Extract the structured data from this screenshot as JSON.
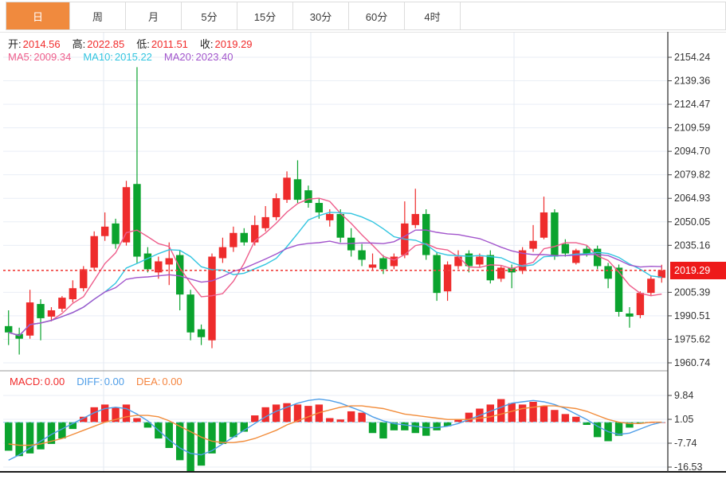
{
  "tabs": [
    {
      "key": "day",
      "label": "日",
      "active": true
    },
    {
      "key": "week",
      "label": "周",
      "active": false
    },
    {
      "key": "month",
      "label": "月",
      "active": false
    },
    {
      "key": "5min",
      "label": "5分",
      "active": false
    },
    {
      "key": "15min",
      "label": "15分",
      "active": false
    },
    {
      "key": "30min",
      "label": "30分",
      "active": false
    },
    {
      "key": "60min",
      "label": "60分",
      "active": false
    },
    {
      "key": "4hour",
      "label": "4时",
      "active": false
    }
  ],
  "ohlc": {
    "open_label": "开:",
    "open": "2014.56",
    "high_label": "高:",
    "high": "2022.85",
    "low_label": "低:",
    "low": "2011.51",
    "close_label": "收:",
    "close": "2019.29"
  },
  "ma": {
    "ma5_label": "MA5:",
    "ma5": "2009.34",
    "ma10_label": "MA10:",
    "ma10": "2015.22",
    "ma20_label": "MA20:",
    "ma20": "2023.40"
  },
  "macd_readout": {
    "macd_label": "MACD:",
    "macd": "0.00",
    "diff_label": "DIFF:",
    "diff": "0.00",
    "dea_label": "DEA:",
    "dea": "0.00"
  },
  "price_axis": {
    "current": "2019.29"
  },
  "colors": {
    "tab_active_bg": "#f08a3e",
    "up": "#ee2c2c",
    "down": "#0ba32e",
    "ma5": "#ee5d8b",
    "ma10": "#32c5e0",
    "ma20": "#a255cc",
    "diff": "#4f9ee8",
    "dea": "#f28c3a",
    "badge": "#ee1a1a",
    "price_line": "#f0403c",
    "grid": "#e9eef6",
    "vgrid": "#e3e9f1",
    "axis_line": "#444444",
    "axis_text": "#333333",
    "zero_dash": "#a5d5ee",
    "separator": "#999999",
    "bottom_line": "#1a1a1a"
  },
  "chart_data": {
    "type": "candlestick+macd",
    "price_panel": {
      "yticks": [
        2154.24,
        2139.36,
        2124.47,
        2109.59,
        2094.7,
        2079.82,
        2064.93,
        2050.05,
        2035.16,
        2005.39,
        1990.51,
        1975.62,
        1960.74
      ],
      "ylim": [
        1957.7,
        2170.4
      ],
      "current_price": 2019.29,
      "ma_windows": [
        5,
        10,
        20
      ],
      "candles": [
        [
          1984,
          1994,
          1972,
          1980
        ],
        [
          1979,
          1983,
          1966,
          1976
        ],
        [
          1978,
          2007,
          1976,
          1999
        ],
        [
          1998,
          2001,
          1975,
          1989
        ],
        [
          1990,
          1996,
          1987,
          1994
        ],
        [
          1995,
          2003,
          1993,
          2002
        ],
        [
          2001,
          2013,
          1999,
          2008
        ],
        [
          2008,
          2022,
          2006,
          2020
        ],
        [
          2021,
          2044,
          2019,
          2041
        ],
        [
          2041,
          2056,
          2038,
          2047
        ],
        [
          2049,
          2052,
          2033,
          2036
        ],
        [
          2037,
          2076,
          2035,
          2072
        ],
        [
          2074,
          2148,
          2024,
          2028
        ],
        [
          2030,
          2034,
          2018,
          2020
        ],
        [
          2018,
          2028,
          2014,
          2025
        ],
        [
          2023,
          2037,
          2010,
          2027
        ],
        [
          2029,
          2032,
          1994,
          2004
        ],
        [
          2004,
          2007,
          1975,
          1980
        ],
        [
          1982,
          1985,
          1972,
          1977
        ],
        [
          1975,
          2030,
          1970,
          2028
        ],
        [
          2027,
          2040,
          2024,
          2034
        ],
        [
          2034,
          2047,
          2031,
          2043
        ],
        [
          2043,
          2046,
          2035,
          2037
        ],
        [
          2037,
          2054,
          2035,
          2048
        ],
        [
          2046,
          2060,
          2044,
          2053
        ],
        [
          2053,
          2068,
          2051,
          2065
        ],
        [
          2064,
          2082,
          2062,
          2078
        ],
        [
          2077,
          2089,
          2062,
          2064
        ],
        [
          2070,
          2073,
          2059,
          2062
        ],
        [
          2062,
          2065,
          2052,
          2056
        ],
        [
          2051,
          2058,
          2047,
          2055
        ],
        [
          2055,
          2058,
          2037,
          2040
        ],
        [
          2040,
          2046,
          2028,
          2032
        ],
        [
          2032,
          2036,
          2022,
          2026
        ],
        [
          2021,
          2030,
          2019,
          2023
        ],
        [
          2027,
          2029,
          2017,
          2020
        ],
        [
          2022,
          2030,
          2020,
          2028
        ],
        [
          2029,
          2063,
          2027,
          2049
        ],
        [
          2048,
          2071,
          2046,
          2055
        ],
        [
          2055,
          2058,
          2026,
          2029
        ],
        [
          2029,
          2031,
          2000,
          2005
        ],
        [
          2006,
          2025,
          2000,
          2023
        ],
        [
          2022,
          2032,
          2020,
          2028
        ],
        [
          2030,
          2032,
          2018,
          2022
        ],
        [
          2023,
          2030,
          2021,
          2028
        ],
        [
          2029,
          2032,
          2011,
          2013
        ],
        [
          2014,
          2022,
          2012,
          2021
        ],
        [
          2021,
          2023,
          2008,
          2018
        ],
        [
          2019,
          2034,
          2017,
          2032
        ],
        [
          2033,
          2048,
          2031,
          2038
        ],
        [
          2040,
          2066,
          2039,
          2056
        ],
        [
          2056,
          2058,
          2026,
          2028
        ],
        [
          2036,
          2039,
          2028,
          2030
        ],
        [
          2024,
          2033,
          2023,
          2032
        ],
        [
          2033,
          2035,
          2028,
          2030
        ],
        [
          2033,
          2035,
          2020,
          2022
        ],
        [
          2022,
          2024,
          2008,
          2014
        ],
        [
          2021,
          2023,
          1990,
          1993
        ],
        [
          1992,
          1996,
          1983,
          1990
        ],
        [
          1991,
          2006,
          1989,
          2005
        ],
        [
          2005,
          2016,
          2003,
          2014
        ],
        [
          2014.56,
          2022.85,
          2011.51,
          2019.29
        ]
      ]
    },
    "macd_panel": {
      "yticks": [
        9.84,
        1.05,
        -7.74,
        -16.53
      ],
      "histogram": [
        -10.5,
        -12.5,
        -11.5,
        -10,
        -8,
        -6,
        -2.5,
        2,
        5.5,
        6.5,
        5.5,
        6.5,
        1.5,
        -2,
        -6,
        -9.5,
        -14,
        -18,
        -16,
        -11.5,
        -8,
        -5.5,
        -3.5,
        2.5,
        5.5,
        6.5,
        7,
        6.5,
        6,
        6.5,
        1.5,
        1,
        4,
        3.5,
        -4,
        -6,
        -3,
        -3,
        -4,
        -5,
        -3,
        -1.5,
        1,
        3.5,
        5,
        6.5,
        8.5,
        7,
        6.5,
        7.5,
        6,
        4.5,
        3,
        2,
        -1,
        -5.5,
        -7,
        -5,
        -2,
        -0.5,
        0,
        0
      ],
      "diff": [
        -14,
        -12,
        -9.5,
        -7,
        -4.5,
        -2.5,
        -0.5,
        1.5,
        3.5,
        5,
        5.5,
        5,
        3,
        0.5,
        -3,
        -6.5,
        -9.5,
        -11.5,
        -12,
        -10.5,
        -8,
        -5.5,
        -3,
        -0.5,
        2,
        4,
        5.5,
        7,
        8,
        8.5,
        8,
        7,
        5.5,
        4,
        2,
        0.5,
        -0.5,
        -1,
        -1.5,
        -2,
        -2,
        -1.5,
        -0.5,
        1,
        2.5,
        4,
        5.5,
        7,
        7.5,
        8,
        7.5,
        6.5,
        5,
        3,
        1,
        -1.5,
        -3.5,
        -4.5,
        -4,
        -2.5,
        -1,
        0
      ],
      "dea": [
        -8,
        -8.5,
        -8.5,
        -8,
        -7,
        -6,
        -4.5,
        -3,
        -1.5,
        0,
        1,
        2,
        2.5,
        2.5,
        2,
        0.5,
        -1.5,
        -3.5,
        -5.5,
        -7,
        -7.5,
        -7.5,
        -7,
        -6,
        -4.5,
        -3,
        -1,
        0.5,
        2,
        3.5,
        4.5,
        5.5,
        6,
        6,
        5.5,
        5,
        4,
        3,
        2.5,
        2,
        1.5,
        1,
        1,
        1,
        1.5,
        2,
        3,
        4,
        5,
        5.5,
        6,
        6,
        5.5,
        5,
        4,
        2.5,
        1,
        0,
        -0.5,
        -0.5,
        0,
        0
      ]
    }
  }
}
